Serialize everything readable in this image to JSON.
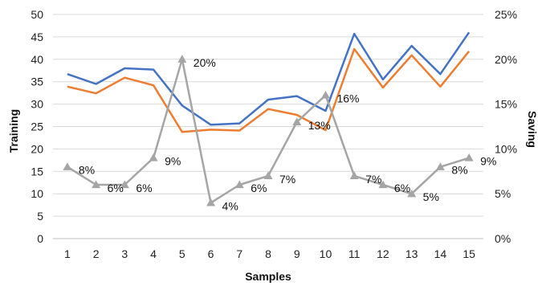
{
  "chart_data": {
    "type": "line",
    "title": "",
    "xlabel": "Samples",
    "ylabel": "Training",
    "y2label": "Saving",
    "x": [
      1,
      2,
      3,
      4,
      5,
      6,
      7,
      8,
      9,
      10,
      11,
      12,
      13,
      14,
      15
    ],
    "ylim": [
      0,
      50
    ],
    "y_ticks": [
      0,
      5,
      10,
      15,
      20,
      25,
      30,
      35,
      40,
      45,
      50
    ],
    "y2lim": [
      0,
      25
    ],
    "y2_ticks": [
      "0%",
      "5%",
      "10%",
      "15%",
      "20%",
      "25%"
    ],
    "grid": true,
    "legend": "none",
    "series": [
      {
        "axis": "left",
        "color": "#4472C4",
        "values": [
          36.7,
          34.5,
          38.0,
          37.7,
          29.7,
          25.4,
          25.7,
          31.0,
          31.8,
          28.5,
          45.7,
          35.5,
          43.0,
          36.7,
          46.0
        ]
      },
      {
        "axis": "left",
        "color": "#ED7D31",
        "values": [
          33.9,
          32.4,
          35.9,
          34.2,
          23.8,
          24.3,
          24.1,
          28.9,
          27.6,
          24.2,
          42.3,
          33.7,
          40.9,
          33.9,
          41.8
        ]
      },
      {
        "axis": "right",
        "color": "#A5A5A5",
        "marker": "triangle",
        "values": [
          8,
          6,
          6,
          9,
          20,
          4,
          6,
          7,
          13,
          16,
          7,
          6,
          5,
          8,
          9
        ],
        "labels": [
          "8%",
          "6%",
          "6%",
          "9%",
          "20%",
          "4%",
          "6%",
          "7%",
          "13%",
          "16%",
          "7%",
          "6%",
          "5%",
          "8%",
          "9%"
        ]
      }
    ]
  }
}
